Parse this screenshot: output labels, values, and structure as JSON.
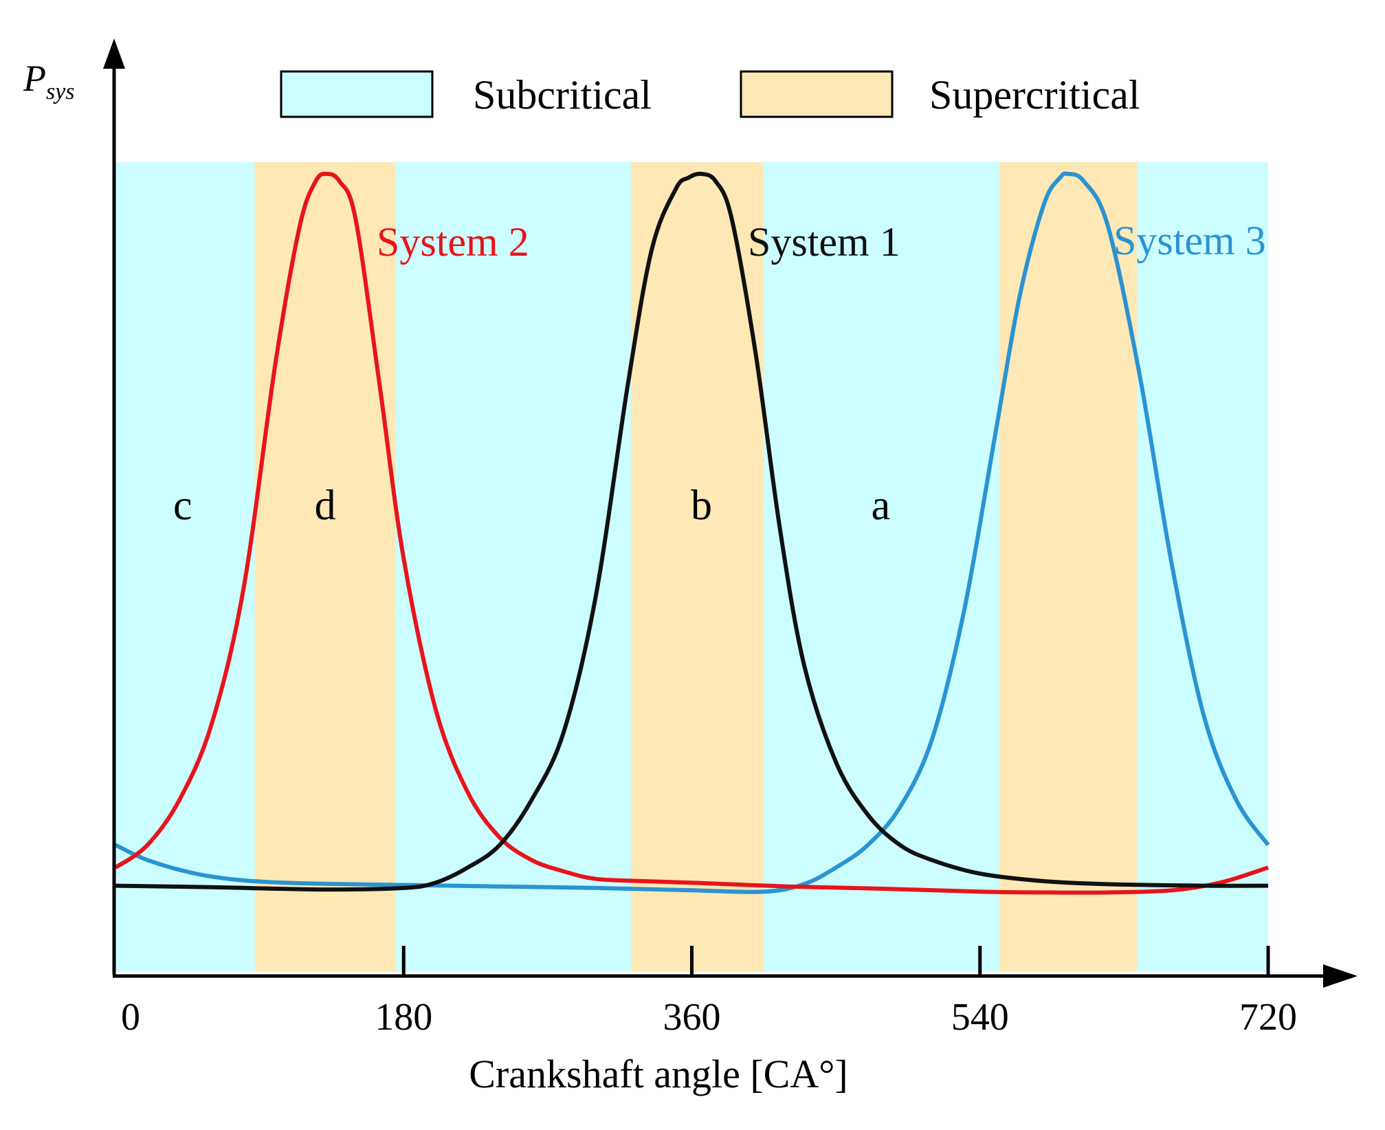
{
  "chart_data": {
    "type": "line",
    "title": "",
    "xlabel": "Crankshaft angle [CA°]",
    "ylabel": "P",
    "ylabel_subscript": "sys",
    "xlim": [
      0,
      720
    ],
    "ylim": [
      0,
      1
    ],
    "xticks": [
      0,
      180,
      360,
      540,
      720
    ],
    "legend": {
      "placement": "top",
      "entries": [
        {
          "label": "Subcritical",
          "color": "#ccfdff"
        },
        {
          "label": "Supercritical",
          "color": "#fde8b6"
        }
      ]
    },
    "regions": [
      {
        "type": "Subcritical",
        "x0": 0,
        "x1": 87
      },
      {
        "type": "Supercritical",
        "x0": 87,
        "x1": 175
      },
      {
        "type": "Subcritical",
        "x0": 175,
        "x1": 322
      },
      {
        "type": "Supercritical",
        "x0": 322,
        "x1": 405
      },
      {
        "type": "Subcritical",
        "x0": 405,
        "x1": 552
      },
      {
        "type": "Supercritical",
        "x0": 552,
        "x1": 638
      },
      {
        "type": "Subcritical",
        "x0": 638,
        "x1": 720
      }
    ],
    "series": [
      {
        "name": "System 2",
        "color": "#e8141b",
        "peak_x": 132,
        "points": [
          [
            0,
            0.08
          ],
          [
            20,
            0.11
          ],
          [
            40,
            0.17
          ],
          [
            60,
            0.27
          ],
          [
            80,
            0.45
          ],
          [
            100,
            0.75
          ],
          [
            115,
            0.93
          ],
          [
            125,
            0.99
          ],
          [
            132,
            1.0
          ],
          [
            140,
            0.99
          ],
          [
            150,
            0.94
          ],
          [
            165,
            0.72
          ],
          [
            180,
            0.49
          ],
          [
            200,
            0.29
          ],
          [
            220,
            0.18
          ],
          [
            240,
            0.12
          ],
          [
            260,
            0.09
          ],
          [
            280,
            0.075
          ],
          [
            300,
            0.065
          ],
          [
            330,
            0.062
          ],
          [
            360,
            0.06
          ],
          [
            420,
            0.055
          ],
          [
            480,
            0.052
          ],
          [
            540,
            0.048
          ],
          [
            580,
            0.047
          ],
          [
            620,
            0.047
          ],
          [
            660,
            0.05
          ],
          [
            690,
            0.06
          ],
          [
            720,
            0.08
          ]
        ]
      },
      {
        "name": "System 1",
        "color": "#111111",
        "peak_x": 366,
        "points": [
          [
            0,
            0.056
          ],
          [
            60,
            0.054
          ],
          [
            130,
            0.051
          ],
          [
            180,
            0.053
          ],
          [
            200,
            0.06
          ],
          [
            220,
            0.08
          ],
          [
            240,
            0.11
          ],
          [
            260,
            0.17
          ],
          [
            280,
            0.26
          ],
          [
            300,
            0.44
          ],
          [
            320,
            0.72
          ],
          [
            335,
            0.9
          ],
          [
            350,
            0.98
          ],
          [
            358,
            0.995
          ],
          [
            366,
            1.0
          ],
          [
            375,
            0.99
          ],
          [
            385,
            0.94
          ],
          [
            400,
            0.76
          ],
          [
            415,
            0.53
          ],
          [
            430,
            0.35
          ],
          [
            450,
            0.22
          ],
          [
            470,
            0.15
          ],
          [
            490,
            0.11
          ],
          [
            510,
            0.09
          ],
          [
            540,
            0.072
          ],
          [
            580,
            0.062
          ],
          [
            620,
            0.058
          ],
          [
            680,
            0.056
          ],
          [
            720,
            0.056
          ]
        ]
      },
      {
        "name": "System 3",
        "color": "#2b93d1",
        "peak_x": 595,
        "points": [
          [
            0,
            0.11
          ],
          [
            20,
            0.09
          ],
          [
            50,
            0.072
          ],
          [
            80,
            0.063
          ],
          [
            120,
            0.059
          ],
          [
            180,
            0.057
          ],
          [
            240,
            0.055
          ],
          [
            300,
            0.053
          ],
          [
            360,
            0.05
          ],
          [
            405,
            0.048
          ],
          [
            430,
            0.058
          ],
          [
            450,
            0.08
          ],
          [
            470,
            0.11
          ],
          [
            490,
            0.16
          ],
          [
            510,
            0.25
          ],
          [
            530,
            0.42
          ],
          [
            550,
            0.66
          ],
          [
            565,
            0.84
          ],
          [
            580,
            0.96
          ],
          [
            590,
            0.995
          ],
          [
            595,
            1.0
          ],
          [
            605,
            0.99
          ],
          [
            620,
            0.93
          ],
          [
            640,
            0.73
          ],
          [
            660,
            0.48
          ],
          [
            680,
            0.28
          ],
          [
            700,
            0.17
          ],
          [
            720,
            0.11
          ]
        ]
      }
    ],
    "annotations": [
      {
        "text": "c",
        "x": 42,
        "y": 0.56
      },
      {
        "text": "d",
        "x": 131,
        "y": 0.56
      },
      {
        "text": "b",
        "x": 366,
        "y": 0.56
      },
      {
        "text": "a",
        "x": 478,
        "y": 0.56
      }
    ]
  }
}
